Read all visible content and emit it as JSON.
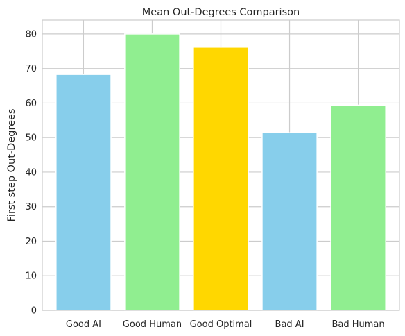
{
  "chart_data": {
    "type": "bar",
    "title": "Mean Out-Degrees Comparison",
    "xlabel": "",
    "ylabel": "First step Out-Degrees",
    "categories": [
      "Good AI",
      "Good Human",
      "Good Optimal",
      "Bad AI",
      "Bad Human"
    ],
    "values": [
      68.3,
      80.0,
      76.2,
      51.4,
      59.4
    ],
    "colors": [
      "#87ceeb",
      "#90ee90",
      "#ffd700",
      "#87ceeb",
      "#90ee90"
    ],
    "ylim": [
      0,
      84
    ],
    "yticks": [
      0,
      10,
      20,
      30,
      40,
      50,
      60,
      70,
      80
    ],
    "grid": true,
    "legend": "none"
  }
}
